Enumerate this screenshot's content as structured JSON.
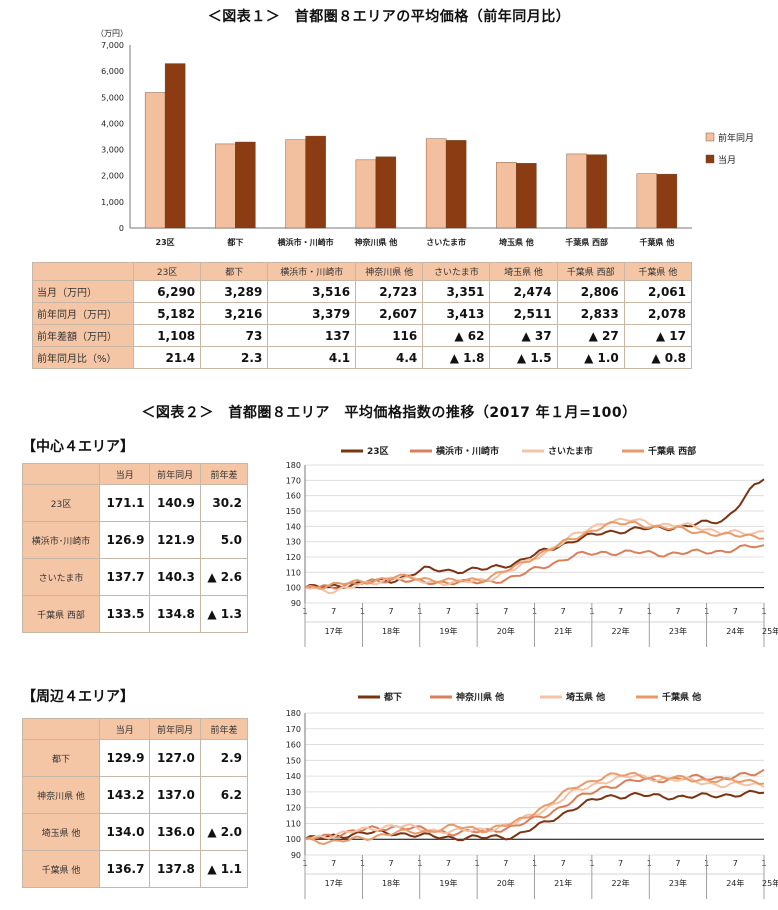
{
  "fig1_title": "＜図表１＞　首都圏８エリアの平均価格（前年同月比）",
  "fig2_title": "＜図表２＞　首都圏８エリア　平均価格指数の推移（2017 年１月=100）",
  "colors": {
    "prev": "#f2c09f",
    "curr": "#8b3c12",
    "accent_line": "#a0522d",
    "header_bg": "#f5c6a5"
  },
  "chart_data": [
    {
      "type": "bar",
      "unit_label": "（万円）",
      "categories": [
        "23区",
        "都下",
        "横浜市・川崎市",
        "神奈川県 他",
        "さいたま市",
        "埼玉県 他",
        "千葉県 西部",
        "千葉県 他"
      ],
      "series": [
        {
          "name": "前年同月",
          "color": "#f2c09f",
          "values": [
            5182,
            3216,
            3379,
            2607,
            3413,
            2511,
            2833,
            2078
          ]
        },
        {
          "name": "当月",
          "color": "#8b3c12",
          "values": [
            6290,
            3289,
            3516,
            2723,
            3351,
            2474,
            2806,
            2061
          ]
        }
      ],
      "ylim": [
        0,
        7000
      ],
      "yticks": [
        "0",
        "1,000",
        "2,000",
        "3,000",
        "4,000",
        "5,000",
        "6,000",
        "7,000"
      ],
      "legend_position": "right"
    },
    {
      "type": "line",
      "ylim": [
        90,
        180
      ],
      "yticks": [
        90,
        100,
        110,
        120,
        130,
        140,
        150,
        160,
        170,
        180
      ],
      "x_month_ticks": [
        "1",
        "7",
        "1",
        "7",
        "1",
        "7",
        "1",
        "7",
        "1",
        "7",
        "1",
        "7",
        "1",
        "7",
        "1",
        "7",
        "1"
      ],
      "x_year_labels": [
        "17年",
        "18年",
        "19年",
        "20年",
        "21年",
        "22年",
        "23年",
        "24年",
        "25年"
      ],
      "legend_position": "top",
      "series": [
        {
          "name": "23区",
          "color": "#7a3412",
          "knots": [
            [
              0,
              100
            ],
            [
              6,
              101
            ],
            [
              12,
              103
            ],
            [
              18,
              105
            ],
            [
              24,
              112
            ],
            [
              30,
              111
            ],
            [
              36,
              112
            ],
            [
              42,
              116
            ],
            [
              48,
              124
            ],
            [
              54,
              131
            ],
            [
              60,
              136
            ],
            [
              66,
              138
            ],
            [
              72,
              139
            ],
            [
              78,
              141
            ],
            [
              84,
              144
            ],
            [
              88,
              158
            ],
            [
              90,
              166
            ],
            [
              92,
              171.1
            ]
          ]
        },
        {
          "name": "横浜市・川崎市",
          "color": "#d9805a",
          "knots": [
            [
              0,
              100
            ],
            [
              6,
              101
            ],
            [
              12,
              103
            ],
            [
              18,
              106
            ],
            [
              24,
              103
            ],
            [
              30,
              104
            ],
            [
              36,
              103
            ],
            [
              42,
              107
            ],
            [
              48,
              114
            ],
            [
              54,
              121
            ],
            [
              60,
              123
            ],
            [
              66,
              123
            ],
            [
              72,
              122
            ],
            [
              78,
              123
            ],
            [
              84,
              124
            ],
            [
              90,
              127
            ],
            [
              92,
              126.9
            ]
          ]
        },
        {
          "name": "さいたま市",
          "color": "#f4c3a6",
          "knots": [
            [
              0,
              100
            ],
            [
              6,
              98
            ],
            [
              12,
              102
            ],
            [
              18,
              107
            ],
            [
              24,
              104
            ],
            [
              30,
              103
            ],
            [
              36,
              105
            ],
            [
              42,
              112
            ],
            [
              48,
              123
            ],
            [
              54,
              134
            ],
            [
              60,
              143
            ],
            [
              66,
              144
            ],
            [
              72,
              141
            ],
            [
              78,
              140
            ],
            [
              84,
              136
            ],
            [
              90,
              135
            ],
            [
              92,
              137.7
            ]
          ]
        },
        {
          "name": "千葉県 西部",
          "color": "#e99a6a",
          "knots": [
            [
              0,
              100
            ],
            [
              6,
              102
            ],
            [
              12,
              104
            ],
            [
              18,
              107
            ],
            [
              24,
              106
            ],
            [
              30,
              104
            ],
            [
              36,
              106
            ],
            [
              42,
              113
            ],
            [
              48,
              124
            ],
            [
              54,
              132
            ],
            [
              60,
              141
            ],
            [
              66,
              142
            ],
            [
              72,
              139
            ],
            [
              78,
              137
            ],
            [
              84,
              134
            ],
            [
              90,
              134
            ],
            [
              92,
              133.5
            ]
          ]
        }
      ]
    },
    {
      "type": "line",
      "ylim": [
        90,
        180
      ],
      "yticks": [
        90,
        100,
        110,
        120,
        130,
        140,
        150,
        160,
        170,
        180
      ],
      "x_month_ticks": [
        "1",
        "7",
        "1",
        "7",
        "1",
        "7",
        "1",
        "7",
        "1",
        "7",
        "1",
        "7",
        "1",
        "7",
        "1",
        "7",
        "1"
      ],
      "x_year_labels": [
        "17年",
        "18年",
        "19年",
        "20年",
        "21年",
        "22年",
        "23年",
        "24年",
        "25年"
      ],
      "legend_position": "top",
      "series": [
        {
          "name": "都下",
          "color": "#7a3412",
          "knots": [
            [
              0,
              100
            ],
            [
              6,
              102
            ],
            [
              12,
              104
            ],
            [
              18,
              104
            ],
            [
              24,
              102
            ],
            [
              30,
              101
            ],
            [
              36,
              101
            ],
            [
              42,
              102
            ],
            [
              48,
              110
            ],
            [
              54,
              120
            ],
            [
              60,
              127
            ],
            [
              66,
              128
            ],
            [
              72,
              127
            ],
            [
              78,
              127
            ],
            [
              84,
              128
            ],
            [
              90,
              129
            ],
            [
              92,
              129.9
            ]
          ]
        },
        {
          "name": "神奈川県 他",
          "color": "#d9805a",
          "knots": [
            [
              0,
              100
            ],
            [
              6,
              103
            ],
            [
              12,
              106
            ],
            [
              18,
              108
            ],
            [
              24,
              106
            ],
            [
              30,
              104
            ],
            [
              36,
              105
            ],
            [
              42,
              108
            ],
            [
              48,
              115
            ],
            [
              54,
              125
            ],
            [
              60,
              133
            ],
            [
              66,
              137
            ],
            [
              72,
              138
            ],
            [
              78,
              139
            ],
            [
              84,
              139
            ],
            [
              90,
              141
            ],
            [
              92,
              143.2
            ]
          ]
        },
        {
          "name": "埼玉県 他",
          "color": "#f4c3a6",
          "knots": [
            [
              0,
              100
            ],
            [
              6,
              103
            ],
            [
              12,
              106
            ],
            [
              18,
              109
            ],
            [
              24,
              106
            ],
            [
              30,
              105
            ],
            [
              36,
              106
            ],
            [
              42,
              110
            ],
            [
              48,
              119
            ],
            [
              54,
              130
            ],
            [
              60,
              137
            ],
            [
              66,
              140
            ],
            [
              72,
              138
            ],
            [
              78,
              137
            ],
            [
              84,
              134
            ],
            [
              90,
              135
            ],
            [
              92,
              134.0
            ]
          ]
        },
        {
          "name": "千葉県 他",
          "color": "#e99a6a",
          "knots": [
            [
              0,
              100
            ],
            [
              6,
              98
            ],
            [
              12,
              101
            ],
            [
              18,
              104
            ],
            [
              24,
              105
            ],
            [
              30,
              108
            ],
            [
              36,
              106
            ],
            [
              42,
              110
            ],
            [
              48,
              121
            ],
            [
              54,
              133
            ],
            [
              60,
              140
            ],
            [
              66,
              141
            ],
            [
              72,
              139
            ],
            [
              78,
              138
            ],
            [
              84,
              137
            ],
            [
              90,
              137
            ],
            [
              92,
              136.7
            ]
          ]
        }
      ]
    }
  ],
  "table1": {
    "columns": [
      "23区",
      "都下",
      "横浜市・川崎市",
      "神奈川県 他",
      "さいたま市",
      "埼玉県 他",
      "千葉県 西部",
      "千葉県 他"
    ],
    "rows": [
      {
        "label": "当月（万円）",
        "values": [
          "6,290",
          "3,289",
          "3,516",
          "2,723",
          "3,351",
          "2,474",
          "2,806",
          "2,061"
        ]
      },
      {
        "label": "前年同月（万円）",
        "values": [
          "5,182",
          "3,216",
          "3,379",
          "2,607",
          "3,413",
          "2,511",
          "2,833",
          "2,078"
        ]
      },
      {
        "label": "前年差額（万円）",
        "values": [
          "1,108",
          "73",
          "137",
          "116",
          "▲ 62",
          "▲ 37",
          "▲ 27",
          "▲ 17"
        ]
      },
      {
        "label": "前年同月比（%）",
        "values": [
          "21.4",
          "2.3",
          "4.1",
          "4.4",
          "▲ 1.8",
          "▲ 1.5",
          "▲ 1.0",
          "▲ 0.8"
        ]
      }
    ]
  },
  "center": {
    "label": "【中心４エリア】",
    "headers": [
      "当月",
      "前年同月",
      "前年差"
    ],
    "rows": [
      {
        "label": "23区",
        "values": [
          "171.1",
          "140.9",
          "30.2"
        ]
      },
      {
        "label": "横浜市･川崎市",
        "values": [
          "126.9",
          "121.9",
          "5.0"
        ]
      },
      {
        "label": "さいたま市",
        "values": [
          "137.7",
          "140.3",
          "▲ 2.6"
        ]
      },
      {
        "label": "千葉県 西部",
        "values": [
          "133.5",
          "134.8",
          "▲ 1.3"
        ]
      }
    ]
  },
  "periph": {
    "label": "【周辺４エリア】",
    "headers": [
      "当月",
      "前年同月",
      "前年差"
    ],
    "rows": [
      {
        "label": "都下",
        "values": [
          "129.9",
          "127.0",
          "2.9"
        ]
      },
      {
        "label": "神奈川県 他",
        "values": [
          "143.2",
          "137.0",
          "6.2"
        ]
      },
      {
        "label": "埼玉県 他",
        "values": [
          "134.0",
          "136.0",
          "▲ 2.0"
        ]
      },
      {
        "label": "千葉県 他",
        "values": [
          "136.7",
          "137.8",
          "▲ 1.1"
        ]
      }
    ]
  }
}
